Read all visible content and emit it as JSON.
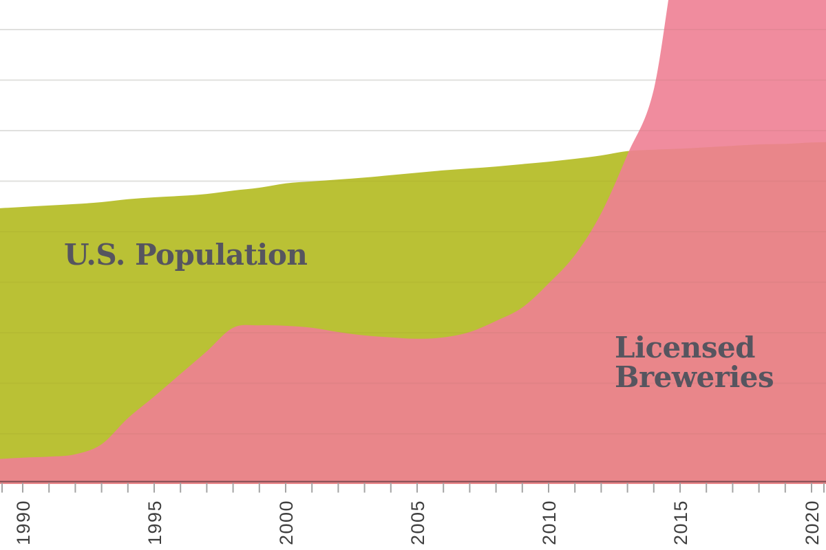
{
  "page": {
    "background": "#ffffff"
  },
  "chart_data": {
    "type": "area",
    "title": "",
    "description_visible_text_only": true,
    "x": [
      1989,
      1990,
      1991,
      1992,
      1993,
      1994,
      1995,
      1996,
      1997,
      1998,
      1999,
      2000,
      2001,
      2002,
      2003,
      2004,
      2005,
      2006,
      2007,
      2008,
      2009,
      2010,
      2011,
      2012,
      2013,
      2014,
      2015,
      2016,
      2017,
      2018,
      2019,
      2020,
      2021
    ],
    "units": "percent_of_plot_height_above_baseline",
    "note": "no y-axis labels are shown in the chart; values estimated from pixels, null = curve above visible chart top",
    "series": [
      {
        "name": "U.S. Population",
        "fill_color": "#b8bf2e",
        "fill_opacity": 0.97,
        "values": [
          56.7,
          57.0,
          57.3,
          57.6,
          58.0,
          58.6,
          59.0,
          59.3,
          59.7,
          60.4,
          61.0,
          61.9,
          62.3,
          62.7,
          63.1,
          63.6,
          64.1,
          64.6,
          65.0,
          65.4,
          65.9,
          66.4,
          67.0,
          67.7,
          68.6,
          68.9,
          69.1,
          69.4,
          69.7,
          70.0,
          70.1,
          70.4,
          70.5
        ],
        "annotation": {
          "text": "U.S. Population",
          "color": "#56555f"
        }
      },
      {
        "name": "Licensed Breweries",
        "fill_color": "#ee7f94",
        "fill_opacity": 0.9,
        "values": [
          4.6,
          4.9,
          5.1,
          5.6,
          7.7,
          13.1,
          17.6,
          22.3,
          27.0,
          31.9,
          32.4,
          32.3,
          31.9,
          31.0,
          30.3,
          29.9,
          29.6,
          29.9,
          31.0,
          33.3,
          36.1,
          41.1,
          47.0,
          55.7,
          67.9,
          81.4,
          null,
          null,
          null,
          null,
          null,
          null,
          null
        ],
        "annotation": {
          "text": "Licensed Breweries",
          "color": "#56555f"
        }
      }
    ],
    "x_axis": {
      "tick_labels": [
        "1990",
        "1995",
        "2000",
        "2005",
        "2010",
        "2015",
        "2020"
      ],
      "labeled_tick_years": [
        1990,
        1995,
        2000,
        2005,
        2010,
        2015,
        2020
      ],
      "minor_ticks": "every year 1990-2020",
      "tick_color": "#a3a3a3",
      "label_color": "#3f3f3f",
      "axis_line_color": "#7d4a51",
      "label_rotation_deg": -90
    },
    "y_axis": {
      "labels_visible": false,
      "gridline_count": 9,
      "gridline_color": "#e7e7e7"
    },
    "legend": "none (in-chart annotations instead)"
  }
}
